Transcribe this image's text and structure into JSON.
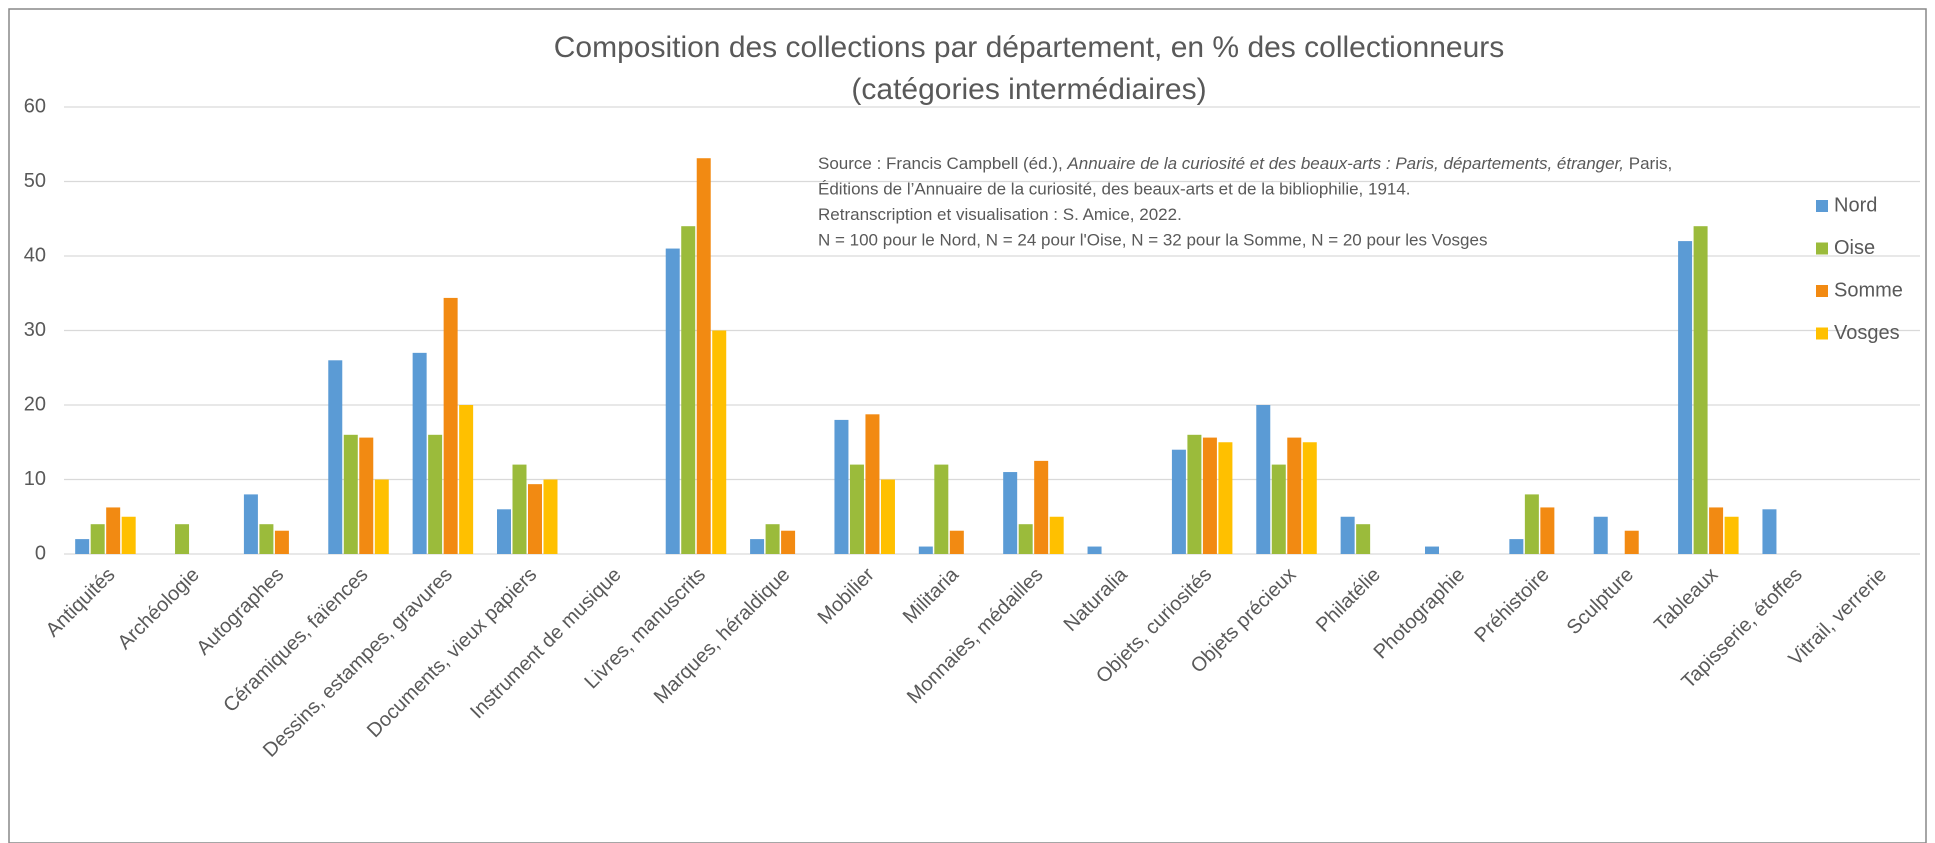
{
  "chart_data": {
    "type": "bar",
    "title": [
      "Composition des collections par département, en % des collectionneurs",
      "(catégories intermédiaires)"
    ],
    "annotation": [
      [
        "Source : Francis Campbell (éd.), ",
        "Annuaire de la curiosité et des beaux-arts : Paris, départements, étranger,",
        " Paris,"
      ],
      [
        "Éditions de l’Annuaire de la curiosité, des beaux-arts et de la bibliophilie, 1914."
      ],
      [
        "Retranscription et visualisation : S. Amice, 2022."
      ],
      [
        "N = 100 pour le Nord, N = 24 pour l'Oise, N = 32 pour la Somme, N = 20 pour les Vosges"
      ]
    ],
    "categories": [
      "Antiquités",
      "Archéologie",
      "Autographes",
      "Céramiques, faïences",
      "Dessins, estampes, gravures",
      "Documents, vieux papiers",
      "Instrument de musique",
      "Livres, manuscrits",
      "Marques, héraldique",
      "Mobilier",
      "Militaria",
      "Monnaies, médailles",
      "Naturalia",
      "Objets, curiosités",
      "Objets précieux",
      "Philatélie",
      "Photographie",
      "Préhistoire",
      "Sculpture",
      "Tableaux",
      "Tapisserie, étoffes",
      "Vitrail, verrerie"
    ],
    "series": [
      {
        "name": "Nord",
        "color": "#5b9bd5",
        "values": [
          2,
          0,
          8,
          26,
          27,
          6,
          0,
          41,
          2,
          18,
          1,
          11,
          1,
          14,
          20,
          5,
          1,
          2,
          5,
          42,
          6,
          0
        ]
      },
      {
        "name": "Oise",
        "color": "#9bbb3b",
        "values": [
          4,
          4,
          4,
          16,
          16,
          12,
          0,
          44,
          4,
          12,
          12,
          4,
          0,
          16,
          12,
          4,
          0,
          8,
          0,
          44,
          0,
          0
        ]
      },
      {
        "name": "Somme",
        "color": "#f28a12",
        "values": [
          6.25,
          0,
          3.125,
          15.625,
          34.375,
          9.375,
          0,
          53.125,
          3.125,
          18.75,
          3.125,
          12.5,
          0,
          15.625,
          15.625,
          0,
          0,
          6.25,
          3.125,
          6.25,
          0,
          0
        ]
      },
      {
        "name": "Vosges",
        "color": "#ffc000",
        "values": [
          5,
          0,
          0,
          10,
          20,
          10,
          0,
          30,
          0,
          10,
          0,
          5,
          0,
          15,
          15,
          0,
          0,
          0,
          0,
          5,
          0,
          0
        ]
      }
    ],
    "ylim": [
      0,
      60
    ],
    "yticks": [
      0,
      10,
      20,
      30,
      40,
      50,
      60
    ],
    "grid": true,
    "legend": "right"
  }
}
